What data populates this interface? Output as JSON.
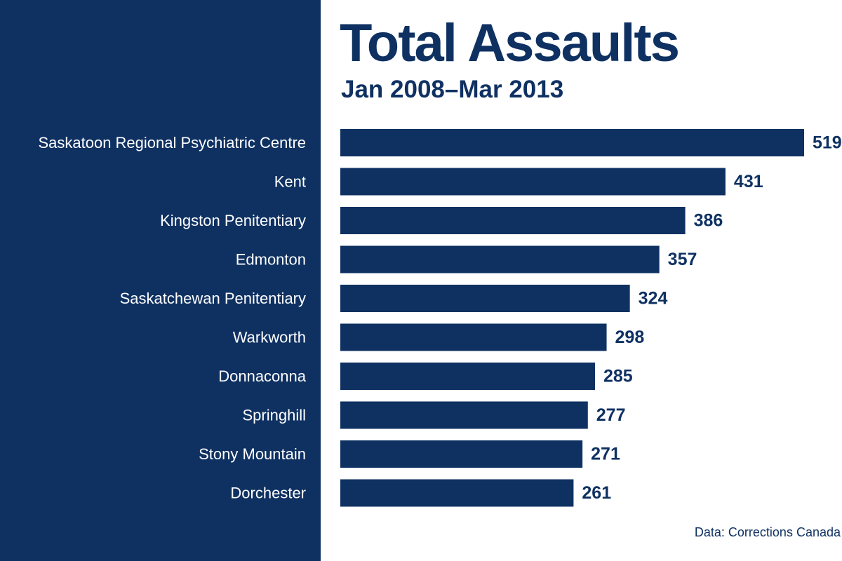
{
  "colors": {
    "panel": "#0f3162",
    "bar": "#0f3162",
    "background": "#ffffff",
    "label_text": "#ffffff",
    "value_text": "#0f3162"
  },
  "header": {
    "title": "Total Assaults",
    "subtitle": "Jan 2008–Mar 2013"
  },
  "source": "Data: Corrections Canada",
  "chart_data": {
    "type": "bar",
    "orientation": "horizontal",
    "title": "Total Assaults",
    "subtitle": "Jan 2008–Mar 2013",
    "categories": [
      "Saskatoon Regional Psychiatric Centre",
      "Kent",
      "Kingston Penitentiary",
      "Edmonton",
      "Saskatchewan Penitentiary",
      "Warkworth",
      "Donnaconna",
      "Springhill",
      "Stony Mountain",
      "Dorchester"
    ],
    "values": [
      519,
      431,
      386,
      357,
      324,
      298,
      285,
      277,
      271,
      261
    ],
    "value_labels": [
      "519",
      "431",
      "386",
      "357",
      "324",
      "298",
      "285",
      "277",
      "271",
      "261"
    ],
    "xlim": [
      0,
      519
    ],
    "grid": false,
    "legend": "none"
  }
}
